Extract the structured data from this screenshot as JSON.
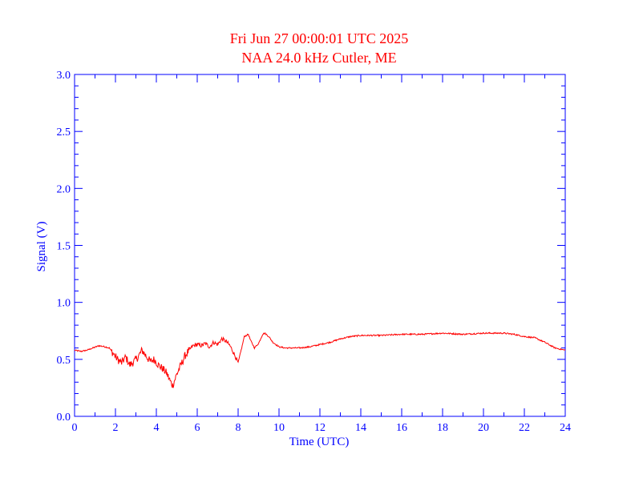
{
  "chart_data": {
    "type": "line",
    "title": "Fri Jun 27 00:00:01 UTC 2025",
    "subtitle": "NAA 24.0 kHz Cutler, ME",
    "xlabel": "Time (UTC)",
    "ylabel": "Signal (V)",
    "xlim": [
      0,
      24
    ],
    "ylim": [
      0,
      3
    ],
    "x_ticks": [
      "0",
      "2",
      "4",
      "6",
      "8",
      "10",
      "12",
      "14",
      "16",
      "18",
      "20",
      "22",
      "24"
    ],
    "y_ticks": [
      "0.0",
      "0.5",
      "1.0",
      "1.5",
      "2.0",
      "2.5",
      "3.0"
    ],
    "grid": false,
    "colors": {
      "axes": "#0000ff",
      "title": "#ff0000",
      "series": "#ff0000"
    },
    "series": [
      {
        "x": [
          0,
          0.3,
          0.6,
          0.9,
          1.2,
          1.5,
          1.7,
          1.9,
          2.1,
          2.3,
          2.5,
          2.7,
          2.9,
          3.1,
          3.3,
          3.5,
          3.7,
          3.9,
          4.1,
          4.3,
          4.5,
          4.7,
          4.8,
          4.9,
          5.0,
          5.2,
          5.4,
          5.6,
          5.8,
          6.0,
          6.2,
          6.4,
          6.6,
          6.8,
          7.0,
          7.2,
          7.4,
          7.6,
          7.8,
          8.0,
          8.2,
          8.3,
          8.5,
          8.6,
          8.8,
          9.0,
          9.2,
          9.3,
          9.5,
          9.7,
          10.0,
          10.3,
          10.6,
          11.0,
          11.5,
          12.0,
          12.5,
          13.0,
          13.5,
          14.0,
          15.0,
          16.0,
          17.0,
          18.0,
          19.0,
          20.0,
          21.0,
          21.5,
          22.0,
          22.5,
          23.0,
          23.5,
          24.0
        ],
        "values": [
          0.58,
          0.57,
          0.58,
          0.6,
          0.62,
          0.61,
          0.6,
          0.55,
          0.5,
          0.47,
          0.52,
          0.45,
          0.48,
          0.52,
          0.58,
          0.53,
          0.48,
          0.5,
          0.45,
          0.42,
          0.38,
          0.3,
          0.27,
          0.32,
          0.37,
          0.45,
          0.53,
          0.58,
          0.62,
          0.63,
          0.62,
          0.64,
          0.61,
          0.65,
          0.63,
          0.68,
          0.66,
          0.62,
          0.55,
          0.47,
          0.62,
          0.7,
          0.72,
          0.67,
          0.6,
          0.64,
          0.72,
          0.73,
          0.7,
          0.65,
          0.61,
          0.6,
          0.6,
          0.6,
          0.61,
          0.63,
          0.65,
          0.68,
          0.7,
          0.71,
          0.71,
          0.72,
          0.72,
          0.73,
          0.72,
          0.73,
          0.73,
          0.72,
          0.7,
          0.69,
          0.65,
          0.6,
          0.58
        ]
      }
    ]
  }
}
